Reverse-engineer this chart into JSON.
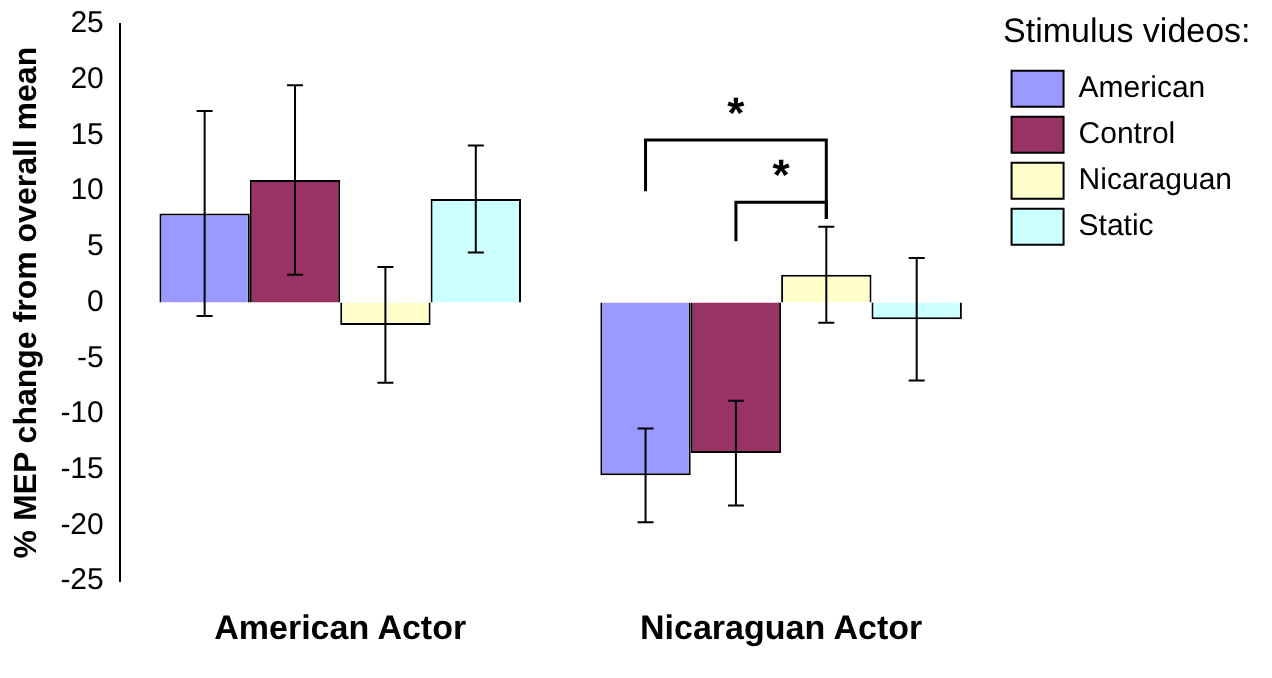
{
  "chart_data": {
    "type": "bar",
    "ylabel": "% MEP change from overall mean",
    "legend_title": "Stimulus videos:",
    "categories": [
      "American Actor",
      "Nicaraguan Actor"
    ],
    "series": [
      {
        "name": "American",
        "color": "#9999ff",
        "values": [
          8,
          -15.5
        ],
        "errors": [
          9.2,
          4.2
        ]
      },
      {
        "name": "Control",
        "color": "#993366",
        "values": [
          11,
          -13.5
        ],
        "errors": [
          8.5,
          4.7
        ]
      },
      {
        "name": "Nicaraguan",
        "color": "#ffffcc",
        "values": [
          -2,
          2.5
        ],
        "errors": [
          5.2,
          4.3
        ]
      },
      {
        "name": "Static",
        "color": "#ccffff",
        "values": [
          9.3,
          -1.5
        ],
        "errors": [
          4.8,
          5.5
        ]
      }
    ],
    "ylim": [
      -25,
      25
    ],
    "yticks": [
      -25,
      -20,
      -15,
      -10,
      -5,
      0,
      5,
      10,
      15,
      20,
      25
    ],
    "grid": false,
    "legend": "right",
    "annotations": [
      "*",
      "*"
    ]
  }
}
